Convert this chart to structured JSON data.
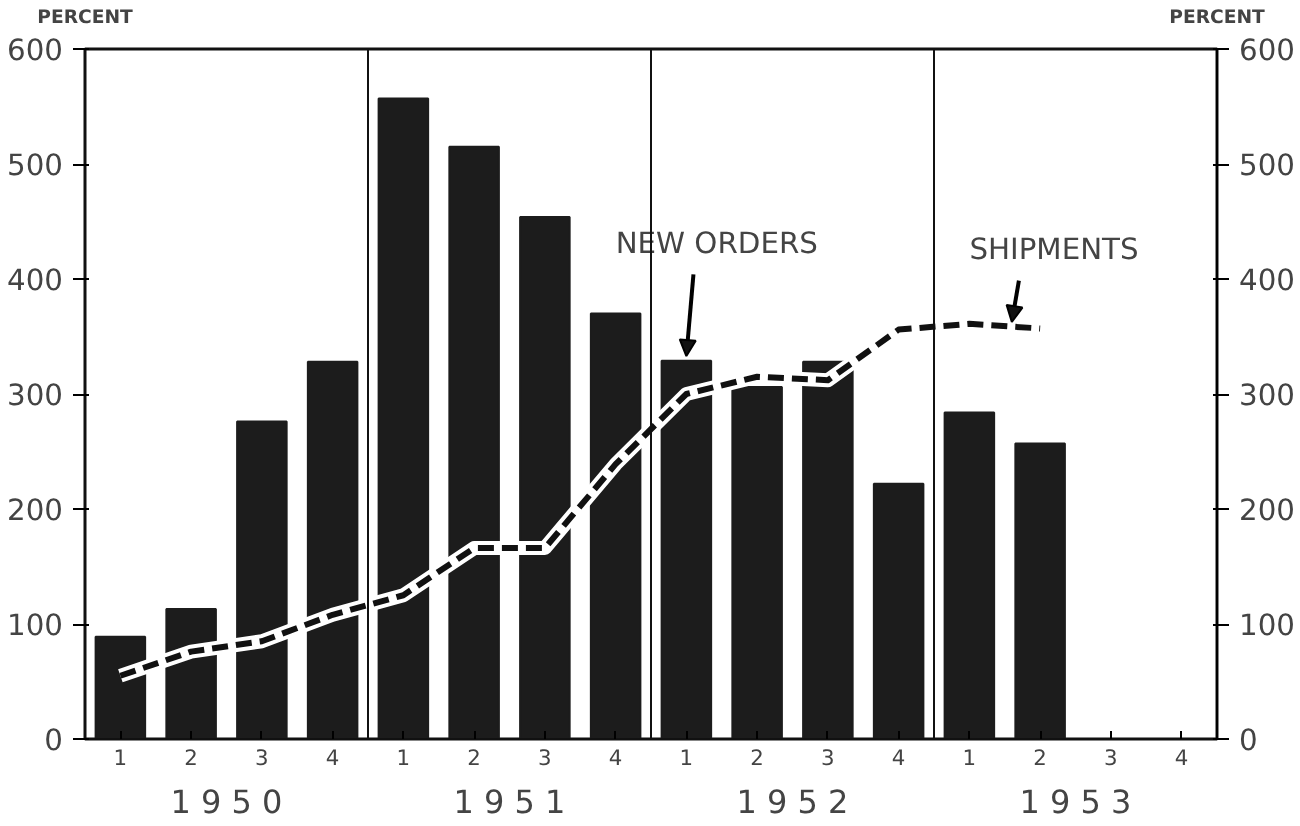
{
  "chart_data": {
    "type": "bar",
    "categories": [
      "1",
      "2",
      "3",
      "4",
      "1",
      "2",
      "3",
      "4",
      "1",
      "2",
      "3",
      "4",
      "1",
      "2",
      "3",
      "4"
    ],
    "series": [
      {
        "name": "NEW ORDERS",
        "color": "#1c1c1c",
        "values": [
          89,
          113,
          276,
          328,
          557,
          515,
          454,
          370,
          329,
          306,
          328,
          222,
          284,
          257,
          null,
          null
        ]
      },
      {
        "name": "SHIPMENTS",
        "type": "line",
        "color": "#111111",
        "line_style": "dashed",
        "values": [
          55,
          76,
          85,
          108,
          125,
          166,
          166,
          239,
          300,
          315,
          312,
          356,
          361,
          357,
          null,
          null
        ]
      }
    ],
    "ylim": [
      0,
      600
    ],
    "yticks": [
      0,
      100,
      200,
      300,
      400,
      500,
      600
    ],
    "y2lim": [
      0,
      600
    ],
    "y2ticks": [
      0,
      100,
      200,
      300,
      400,
      500,
      600
    ],
    "ylabel": "PERCENT",
    "y2label": "PERCENT",
    "annotations": [
      "1 9 5 0",
      "1 9 5 1",
      "1 9 5 2",
      "1 9 5 3"
    ],
    "grid": false,
    "legend": false
  }
}
